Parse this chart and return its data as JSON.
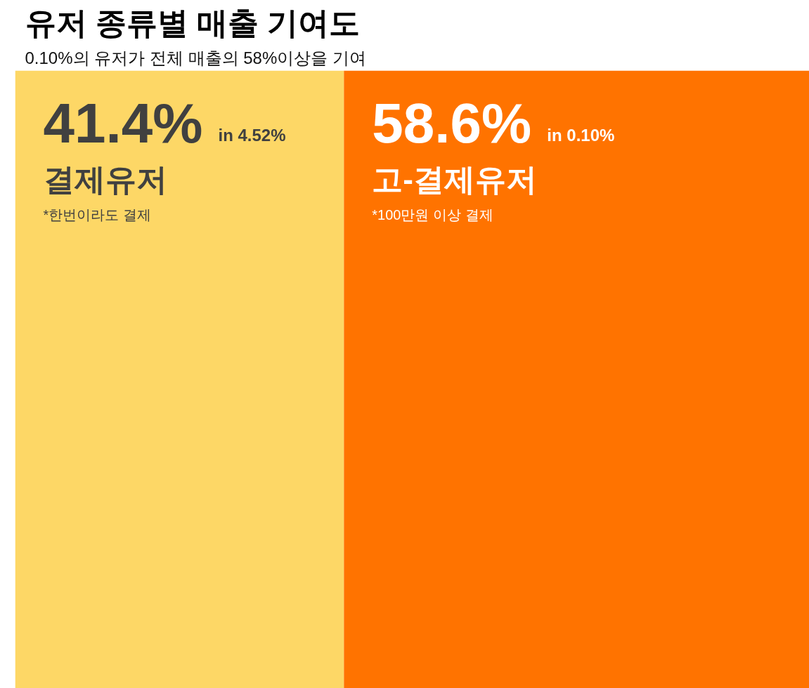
{
  "chart_data": {
    "type": "bar",
    "title": "유저 종류별 매출 기여도",
    "subtitle": "0.10%의 유저가 전체 매출의 58%이상을 기여",
    "orientation": "horizontal",
    "stacked": true,
    "categories": [
      null
    ],
    "xlim": [
      0,
      100
    ],
    "tick_labels": false,
    "grid": false,
    "series": [
      {
        "name": "결제유저",
        "color": "#fdd766",
        "values": [
          41.4
        ],
        "value_labels": [
          "41.4%"
        ]
      },
      {
        "name": "고-결제유저",
        "color": "#ff7300",
        "values": [
          58.6
        ],
        "value_labels": [
          "58.6%"
        ]
      }
    ],
    "annotations": [
      "in 4.52%",
      "*한번이라도 결제",
      "in 0.10%",
      "*100만원 이상 결제"
    ]
  }
}
